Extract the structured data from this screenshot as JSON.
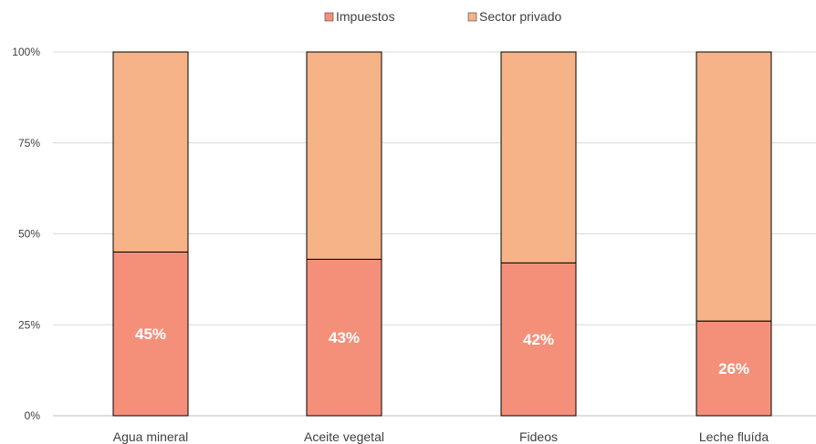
{
  "chart_data": {
    "type": "bar",
    "stacked": true,
    "percent": true,
    "categories": [
      "Agua mineral",
      "Aceite vegetal",
      "Fideos",
      "Leche fluída"
    ],
    "series": [
      {
        "name": "Impuestos",
        "values": [
          45,
          43,
          42,
          26
        ],
        "color": "#f4907a"
      },
      {
        "name": "Sector privado",
        "values": [
          55,
          57,
          58,
          74
        ],
        "color": "#f5b387"
      }
    ],
    "data_labels": [
      "45%",
      "43%",
      "42%",
      "26%"
    ],
    "y_ticks": [
      "0%",
      "25%",
      "50%",
      "75%",
      "100%"
    ],
    "ylim": [
      0,
      100
    ],
    "legend_position": "top-center",
    "grid": true
  }
}
